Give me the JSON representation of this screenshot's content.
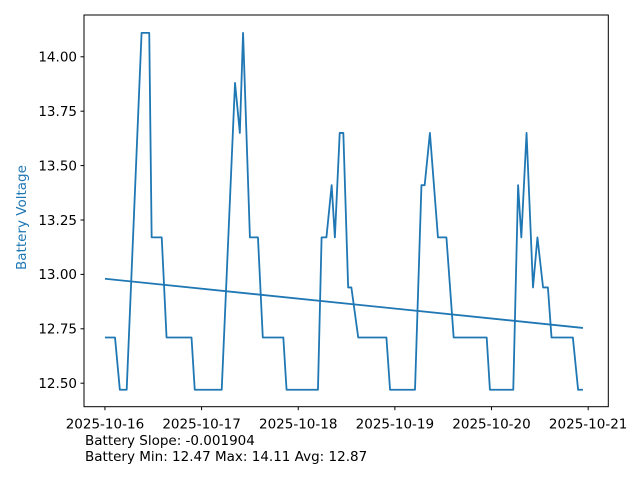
{
  "figure": {
    "footer_line1": "Battery Slope: -0.001904",
    "footer_line2": "Battery Min: 12.47 Max: 14.11 Avg: 12.87"
  },
  "chart_data": {
    "type": "line",
    "title": "",
    "xlabel": "",
    "ylabel": "Battery Voltage",
    "ylabel_color": "#1f77b4",
    "line_color": "#1f77b4",
    "trend_color": "#1f77b4",
    "background": "#ffffff",
    "grid": false,
    "legend": "none",
    "x_unit": "hours since 2025-10-16 00:00",
    "xlim": [
      -5.2,
      125.0
    ],
    "ylim": [
      12.392,
      14.192
    ],
    "x_ticks": [
      {
        "t": 0,
        "label": "2025-10-16"
      },
      {
        "t": 24,
        "label": "2025-10-17"
      },
      {
        "t": 48,
        "label": "2025-10-18"
      },
      {
        "t": 72,
        "label": "2025-10-19"
      },
      {
        "t": 96,
        "label": "2025-10-20"
      },
      {
        "t": 120,
        "label": "2025-10-21"
      }
    ],
    "y_ticks": [
      {
        "v": 12.5,
        "label": "12.50"
      },
      {
        "v": 12.75,
        "label": "12.75"
      },
      {
        "v": 13.0,
        "label": "13.00"
      },
      {
        "v": 13.25,
        "label": "13.25"
      },
      {
        "v": 13.5,
        "label": "13.50"
      },
      {
        "v": 13.75,
        "label": "13.75"
      },
      {
        "v": 14.0,
        "label": "14.00"
      }
    ],
    "series": [
      {
        "name": "Battery Voltage",
        "points": [
          [
            0.0,
            12.71
          ],
          [
            2.5,
            12.71
          ],
          [
            3.7,
            12.47
          ],
          [
            5.4,
            12.47
          ],
          [
            9.1,
            14.11
          ],
          [
            11.0,
            14.11
          ],
          [
            11.6,
            13.17
          ],
          [
            14.1,
            13.17
          ],
          [
            15.3,
            12.71
          ],
          [
            21.5,
            12.71
          ],
          [
            22.3,
            12.47
          ],
          [
            29.0,
            12.47
          ],
          [
            32.3,
            13.88
          ],
          [
            33.5,
            13.65
          ],
          [
            34.3,
            14.11
          ],
          [
            36.0,
            13.17
          ],
          [
            38.0,
            13.17
          ],
          [
            39.2,
            12.71
          ],
          [
            44.3,
            12.71
          ],
          [
            45.1,
            12.47
          ],
          [
            52.9,
            12.47
          ],
          [
            53.8,
            13.17
          ],
          [
            55.0,
            13.17
          ],
          [
            56.3,
            13.41
          ],
          [
            57.1,
            13.17
          ],
          [
            58.3,
            13.65
          ],
          [
            59.2,
            13.65
          ],
          [
            60.4,
            12.94
          ],
          [
            61.2,
            12.94
          ],
          [
            62.9,
            12.71
          ],
          [
            69.9,
            12.71
          ],
          [
            70.8,
            12.47
          ],
          [
            77.0,
            12.47
          ],
          [
            78.6,
            13.41
          ],
          [
            79.4,
            13.41
          ],
          [
            80.7,
            13.65
          ],
          [
            82.7,
            13.17
          ],
          [
            84.8,
            13.17
          ],
          [
            86.6,
            12.71
          ],
          [
            94.8,
            12.71
          ],
          [
            95.6,
            12.47
          ],
          [
            101.4,
            12.47
          ],
          [
            102.6,
            13.41
          ],
          [
            103.4,
            13.17
          ],
          [
            104.7,
            13.65
          ],
          [
            106.3,
            12.94
          ],
          [
            107.4,
            13.17
          ],
          [
            108.8,
            12.94
          ],
          [
            110.0,
            12.94
          ],
          [
            110.9,
            12.71
          ],
          [
            116.2,
            12.71
          ],
          [
            117.5,
            12.47
          ],
          [
            118.7,
            12.47
          ]
        ]
      },
      {
        "name": "Trend",
        "points": [
          [
            0.0,
            12.98
          ],
          [
            118.7,
            12.754
          ]
        ]
      }
    ],
    "stats": {
      "slope_per_hour": -0.001904,
      "min": 12.47,
      "max": 14.11,
      "avg": 12.87
    }
  }
}
